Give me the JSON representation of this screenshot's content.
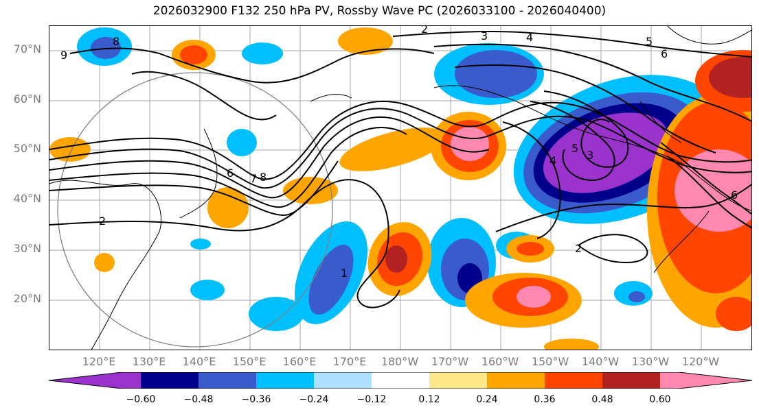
{
  "title": "2026032900 F132 250 hPa PV, Rossby Wave PC (2026033100 - 2026040400)",
  "lat_labels": [
    "70°N",
    "60°N",
    "50°N",
    "40°N",
    "30°N",
    "20°N"
  ],
  "lon_labels": [
    "120°E",
    "130°E",
    "140°E",
    "150°E",
    "160°E",
    "170°E",
    "180°W",
    "170°W",
    "160°W",
    "150°W",
    "140°W",
    "130°W",
    "120°W"
  ],
  "colorbar": {
    "ticks": [
      "−0.60",
      "−0.48",
      "−0.36",
      "−0.24",
      "−0.12",
      "0.12",
      "0.24",
      "0.36",
      "0.48",
      "0.60"
    ],
    "colors": [
      "#9933cc",
      "#00008b",
      "#3a5bcc",
      "#00bfff",
      "#b0e0ff",
      "#ffffff",
      "#ffe88a",
      "#ffa500",
      "#ff4500",
      "#b22222",
      "#ff88b0"
    ]
  },
  "contour_labels": [
    "9",
    "8",
    "2",
    "3",
    "4",
    "5",
    "6",
    "2",
    "6",
    "7",
    "8",
    "4",
    "5",
    "3",
    "2",
    "1",
    "6"
  ]
}
